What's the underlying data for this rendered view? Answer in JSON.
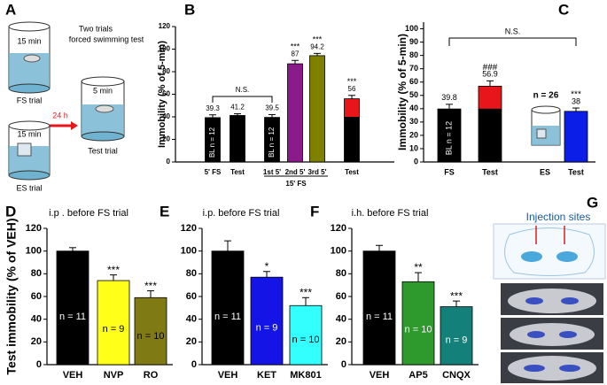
{
  "panel_a": {
    "label": "A",
    "fs_duration": "15 min",
    "fs_trial": "FS trial",
    "heading_line1": "Two trials",
    "heading_line2": "forced swimming test",
    "interval": "24 h",
    "test_duration": "5 min",
    "test_trial": "Test trial",
    "es_duration": "15 min",
    "es_trial": "ES trial"
  },
  "panel_g": {
    "label": "G",
    "title": "Injection sites"
  },
  "chart_data": [
    {
      "type": "bar",
      "label": "B",
      "y_label": "Immobility (% of 5-min)",
      "categories": [
        "5' FS",
        "Test",
        "1st 5'",
        "2nd 5'",
        "3rd 5'",
        "Test"
      ],
      "values": [
        39.3,
        41.2,
        39.5,
        87,
        94.2,
        56
      ],
      "errors": [
        2.5,
        1.5,
        2.5,
        3,
        2,
        3
      ],
      "colors": [
        "#000000",
        "#000000",
        "#000000",
        "#8b1a8b",
        "#808000",
        "#e8161b"
      ],
      "inner_values": [
        null,
        null,
        null,
        null,
        null,
        40
      ],
      "inner_color": "#000000",
      "sig": [
        null,
        null,
        null,
        "***",
        "***",
        "***"
      ],
      "inner_labels": [
        "BL n = 12",
        null,
        "BL n = 12",
        null,
        null,
        null
      ],
      "inner_rotated": true,
      "show_values": true,
      "bracket_label": "N.S.",
      "group_label": "15' FS",
      "ylim": [
        0,
        120
      ],
      "yticks": [
        0,
        20,
        40,
        60,
        80,
        100,
        120
      ]
    },
    {
      "type": "bar",
      "label": "C",
      "y_label": "Immobility (% of 5-min)",
      "categories": [
        "FS",
        "Test",
        "ES",
        "Test"
      ],
      "values": [
        39.8,
        56.9,
        null,
        38
      ],
      "errors": [
        3.5,
        4,
        null,
        2.5
      ],
      "colors": [
        "#000000",
        "#e8161b",
        null,
        "#0a1ee8"
      ],
      "inner_values": [
        null,
        40,
        null,
        null
      ],
      "inner_color": "#000000",
      "sig": [
        null,
        "###",
        null,
        "***"
      ],
      "inner_labels": [
        "BL n = 12",
        null,
        null,
        null
      ],
      "inner_rotated": true,
      "show_values": true,
      "bracket_label": "N.S.",
      "es_label": "n = 26",
      "ylim": [
        0,
        105
      ],
      "yticks": [
        0,
        10,
        20,
        30,
        40,
        50,
        60,
        70,
        80,
        90,
        100
      ]
    },
    {
      "type": "bar",
      "label": "D",
      "title": "i.p . before FS trial",
      "y_label": "Test immobility (% of VEH)",
      "categories": [
        "VEH",
        "NVP",
        "RO"
      ],
      "values": [
        100,
        74,
        59
      ],
      "errors": [
        3,
        5,
        6
      ],
      "colors": [
        "#000000",
        "#ffff1a",
        "#7f7a14"
      ],
      "sig": [
        null,
        "***",
        "***"
      ],
      "inner_labels": [
        "n = 11",
        "n = 9",
        "n = 10"
      ],
      "inner_rotated": false,
      "show_values": false,
      "ylim": [
        0,
        120
      ],
      "yticks": [
        0,
        20,
        40,
        60,
        80,
        100,
        120
      ]
    },
    {
      "type": "bar",
      "label": "E",
      "title": "i.p. before FS trial",
      "categories": [
        "VEH",
        "KET",
        "MK801"
      ],
      "values": [
        100,
        77,
        52
      ],
      "errors": [
        9,
        5,
        7
      ],
      "colors": [
        "#000000",
        "#1414e6",
        "#33ffff"
      ],
      "sig": [
        null,
        "*",
        "***"
      ],
      "inner_labels": [
        "n = 11",
        "n = 9",
        "n = 10"
      ],
      "inner_rotated": false,
      "show_values": false,
      "ylim": [
        0,
        120
      ],
      "yticks": [
        0,
        20,
        40,
        60,
        80,
        100,
        120
      ]
    },
    {
      "type": "bar",
      "label": "F",
      "title": "i.h. before FS trial",
      "categories": [
        "VEH",
        "AP5",
        "CNQX"
      ],
      "values": [
        100,
        73,
        51
      ],
      "errors": [
        5,
        8,
        5
      ],
      "colors": [
        "#000000",
        "#2e9a2e",
        "#14807a"
      ],
      "sig": [
        null,
        "**",
        "***"
      ],
      "inner_labels": [
        "n = 11",
        "n = 10",
        "n = 9"
      ],
      "inner_rotated": false,
      "show_values": false,
      "ylim": [
        0,
        120
      ],
      "yticks": [
        0,
        20,
        40,
        60,
        80,
        100,
        120
      ]
    }
  ]
}
